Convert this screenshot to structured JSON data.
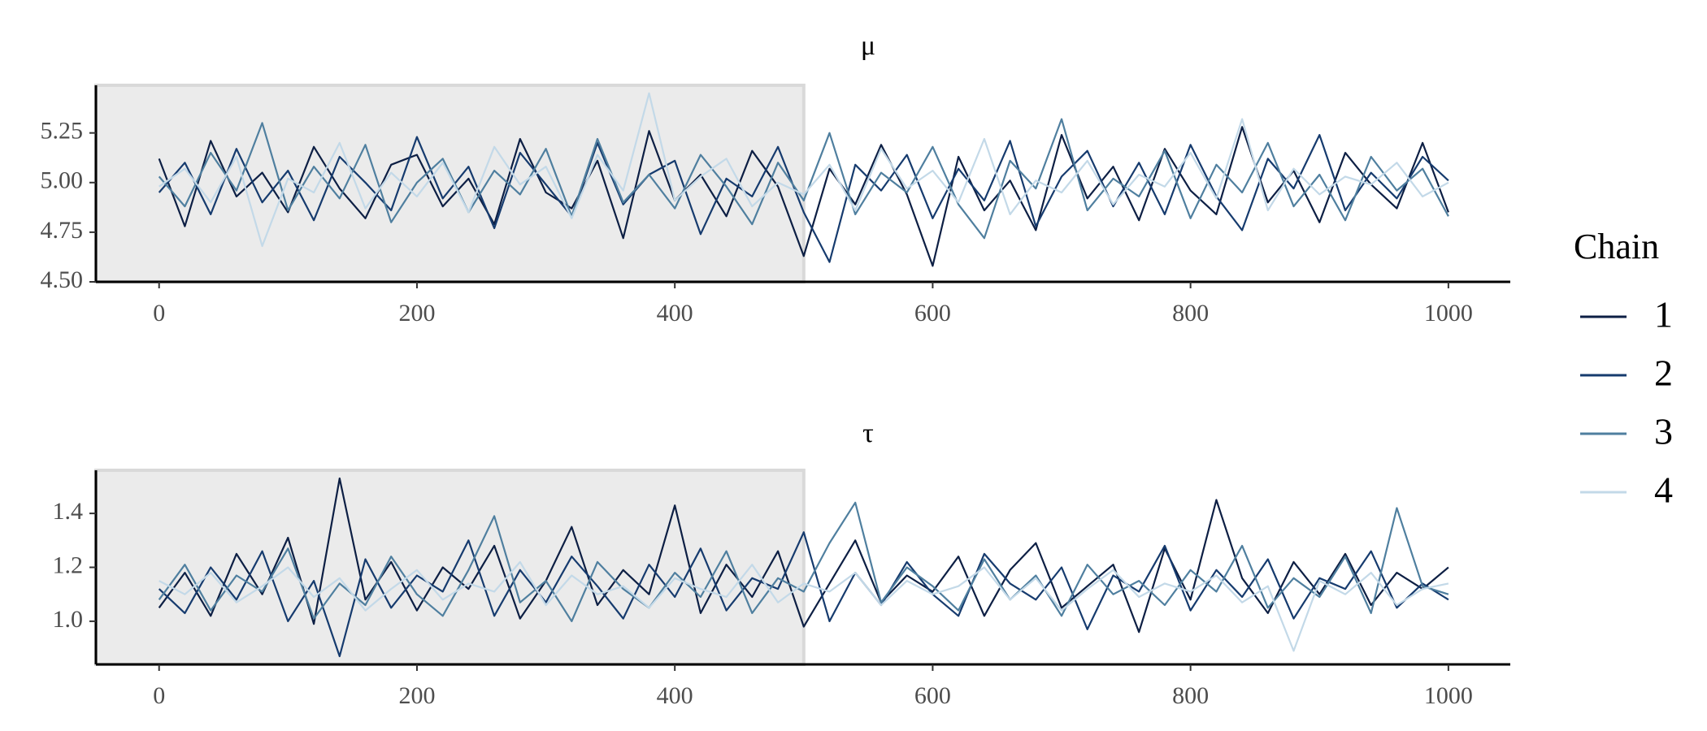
{
  "chart_data": [
    {
      "type": "line",
      "title": "μ",
      "x": [
        0,
        20,
        40,
        60,
        80,
        100,
        120,
        140,
        160,
        180,
        200,
        220,
        240,
        260,
        280,
        300,
        320,
        340,
        360,
        380,
        400,
        420,
        440,
        460,
        480,
        500,
        520,
        540,
        560,
        580,
        600,
        620,
        640,
        660,
        680,
        700,
        720,
        740,
        760,
        780,
        800,
        820,
        840,
        860,
        880,
        900,
        920,
        940,
        960,
        980,
        1000
      ],
      "series": [
        {
          "name": "1",
          "color": "#0d1f44",
          "values": [
            5.12,
            4.78,
            5.21,
            4.93,
            5.05,
            4.85,
            5.18,
            4.97,
            4.82,
            5.09,
            5.14,
            4.88,
            5.02,
            4.79,
            5.22,
            4.95,
            4.87,
            5.11,
            4.72,
            5.26,
            4.91,
            5.04,
            4.83,
            5.16,
            4.98,
            4.63,
            5.07,
            4.89,
            5.19,
            4.94,
            4.58,
            5.13,
            4.86,
            5.01,
            4.76,
            5.24,
            4.92,
            5.08,
            4.81,
            5.17,
            4.96,
            4.84,
            5.28,
            4.9,
            5.06,
            4.8,
            5.15,
            4.99,
            4.87,
            5.2,
            4.85
          ]
        },
        {
          "name": "2",
          "color": "#163b6e",
          "values": [
            4.95,
            5.1,
            4.84,
            5.17,
            4.9,
            5.06,
            4.81,
            5.13,
            5.0,
            4.86,
            5.23,
            4.92,
            5.08,
            4.77,
            5.15,
            4.99,
            4.83,
            5.2,
            4.89,
            5.04,
            5.11,
            4.74,
            5.02,
            4.93,
            5.18,
            4.85,
            4.6,
            5.09,
            4.96,
            5.14,
            4.82,
            5.07,
            4.91,
            5.21,
            4.78,
            5.03,
            5.16,
            4.88,
            5.1,
            4.84,
            5.19,
            4.93,
            4.76,
            5.12,
            4.97,
            5.24,
            4.86,
            5.05,
            4.92,
            5.13,
            5.01
          ]
        },
        {
          "name": "3",
          "color": "#4f7f9f",
          "values": [
            5.03,
            4.88,
            5.15,
            4.96,
            5.3,
            4.86,
            5.08,
            4.92,
            5.19,
            4.8,
            5.0,
            5.12,
            4.85,
            5.06,
            4.94,
            5.17,
            4.83,
            5.22,
            4.9,
            5.04,
            4.87,
            5.14,
            4.98,
            4.79,
            5.1,
            4.91,
            5.25,
            4.84,
            5.05,
            4.95,
            5.18,
            4.89,
            4.72,
            5.11,
            4.97,
            5.32,
            4.86,
            5.02,
            4.93,
            5.16,
            4.82,
            5.09,
            4.95,
            5.2,
            4.88,
            5.04,
            4.81,
            5.13,
            4.96,
            5.07,
            4.83
          ]
        },
        {
          "name": "4",
          "color": "#c3d9e8",
          "values": [
            4.98,
            5.07,
            4.9,
            5.13,
            4.68,
            5.02,
            4.95,
            5.2,
            4.87,
            5.05,
            4.93,
            5.1,
            4.85,
            5.18,
            4.99,
            5.08,
            4.82,
            5.14,
            4.96,
            5.45,
            4.91,
            5.03,
            5.12,
            4.88,
            5.0,
            4.94,
            5.09,
            4.86,
            5.17,
            4.97,
            5.06,
            4.9,
            5.22,
            4.84,
            5.01,
            4.95,
            5.11,
            4.89,
            5.04,
            4.98,
            5.15,
            4.92,
            5.32,
            4.86,
            5.07,
            4.94,
            5.03,
            4.99,
            5.1,
            4.93,
            5.0
          ]
        }
      ],
      "xlim": [
        -49,
        1048
      ],
      "ylim": [
        4.5,
        5.49
      ],
      "xticks": [
        0,
        200,
        400,
        600,
        800,
        1000
      ],
      "yticks": [
        {
          "value": 4.5,
          "label": "4.50"
        },
        {
          "value": 4.75,
          "label": "4.75"
        },
        {
          "value": 5,
          "label": "5.00"
        },
        {
          "value": 5.25,
          "label": "5.25"
        }
      ],
      "warmup": 500
    },
    {
      "type": "line",
      "title": "τ",
      "x": [
        0,
        20,
        40,
        60,
        80,
        100,
        120,
        140,
        160,
        180,
        200,
        220,
        240,
        260,
        280,
        300,
        320,
        340,
        360,
        380,
        400,
        420,
        440,
        460,
        480,
        500,
        520,
        540,
        560,
        580,
        600,
        620,
        640,
        660,
        680,
        700,
        720,
        740,
        760,
        780,
        800,
        820,
        840,
        860,
        880,
        900,
        920,
        940,
        960,
        980,
        1000
      ],
      "series": [
        {
          "name": "1",
          "color": "#0d1f44",
          "values": [
            1.05,
            1.18,
            1.02,
            1.25,
            1.1,
            1.31,
            0.99,
            1.53,
            1.08,
            1.22,
            1.04,
            1.2,
            1.12,
            1.28,
            1.01,
            1.15,
            1.35,
            1.06,
            1.19,
            1.1,
            1.43,
            1.03,
            1.21,
            1.09,
            1.26,
            0.98,
            1.14,
            1.3,
            1.07,
            1.17,
            1.11,
            1.24,
            1.02,
            1.19,
            1.29,
            1.05,
            1.13,
            1.21,
            0.96,
            1.27,
            1.08,
            1.45,
            1.16,
            1.03,
            1.22,
            1.1,
            1.25,
            1.06,
            1.18,
            1.12,
            1.2
          ]
        },
        {
          "name": "2",
          "color": "#163b6e",
          "values": [
            1.12,
            1.03,
            1.2,
            1.08,
            1.26,
            1.0,
            1.15,
            0.87,
            1.23,
            1.05,
            1.17,
            1.11,
            1.3,
            1.02,
            1.19,
            1.07,
            1.24,
            1.13,
            1.01,
            1.21,
            1.09,
            1.27,
            1.04,
            1.16,
            1.12,
            1.33,
            1.0,
            1.18,
            1.06,
            1.22,
            1.1,
            1.02,
            1.25,
            1.14,
            1.08,
            1.2,
            0.97,
            1.17,
            1.11,
            1.28,
            1.04,
            1.19,
            1.09,
            1.23,
            1.01,
            1.16,
            1.12,
            1.26,
            1.05,
            1.14,
            1.08
          ]
        },
        {
          "name": "3",
          "color": "#4f7f9f",
          "values": [
            1.08,
            1.21,
            1.04,
            1.17,
            1.11,
            1.27,
            1.01,
            1.14,
            1.06,
            1.24,
            1.1,
            1.02,
            1.19,
            1.39,
            1.07,
            1.15,
            1.0,
            1.22,
            1.12,
            1.05,
            1.18,
            1.09,
            1.26,
            1.03,
            1.16,
            1.11,
            1.29,
            1.44,
            1.07,
            1.2,
            1.13,
            1.04,
            1.23,
            1.08,
            1.17,
            1.02,
            1.21,
            1.1,
            1.15,
            1.06,
            1.19,
            1.11,
            1.28,
            1.05,
            1.16,
            1.09,
            1.24,
            1.03,
            1.42,
            1.13,
            1.1
          ]
        },
        {
          "name": "4",
          "color": "#c3d9e8",
          "values": [
            1.15,
            1.1,
            1.18,
            1.07,
            1.13,
            1.2,
            1.09,
            1.16,
            1.04,
            1.12,
            1.19,
            1.08,
            1.14,
            1.11,
            1.22,
            1.06,
            1.17,
            1.1,
            1.13,
            1.05,
            1.16,
            1.12,
            1.09,
            1.21,
            1.07,
            1.14,
            1.11,
            1.18,
            1.06,
            1.15,
            1.1,
            1.13,
            1.2,
            1.08,
            1.16,
            1.04,
            1.12,
            1.19,
            1.09,
            1.14,
            1.11,
            1.17,
            1.07,
            1.13,
            0.89,
            1.15,
            1.1,
            1.18,
            1.06,
            1.12,
            1.14
          ]
        }
      ],
      "xlim": [
        -49,
        1048
      ],
      "ylim": [
        0.84,
        1.56
      ],
      "xticks": [
        0,
        200,
        400,
        600,
        800,
        1000
      ],
      "yticks": [
        {
          "value": 1.0,
          "label": "1.0"
        },
        1.2,
        1.4
      ],
      "warmup": 500
    }
  ],
  "legend": {
    "title": "Chain",
    "position": "right"
  }
}
